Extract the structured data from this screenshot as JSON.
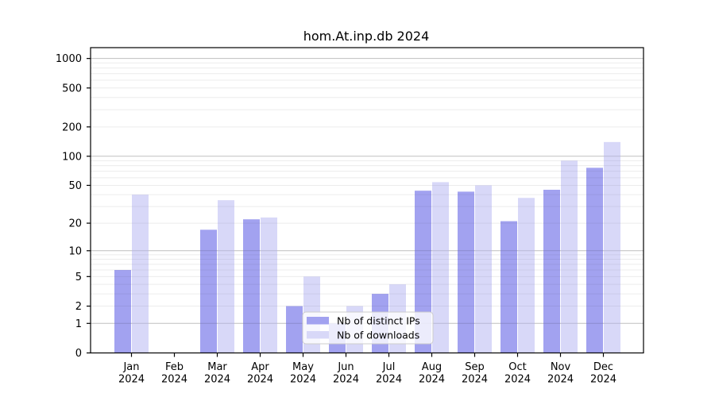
{
  "chart_data": {
    "type": "bar",
    "title": "hom.At.inp.db 2024",
    "categories": [
      "Jan",
      "Feb",
      "Mar",
      "Apr",
      "May",
      "Jun",
      "Jul",
      "Aug",
      "Sep",
      "Oct",
      "Nov",
      "Dec"
    ],
    "x_tick_second_line": "2024",
    "series": [
      {
        "name": "Nb of distinct IPs",
        "color": "#a2a2f0",
        "values": [
          6,
          0,
          17,
          22,
          2,
          1,
          3,
          44,
          43,
          21,
          45,
          76
        ]
      },
      {
        "name": "Nb of downloads",
        "color": "#d8d8f8",
        "values": [
          40,
          0,
          35,
          23,
          5,
          2,
          4,
          54,
          50,
          37,
          90,
          140
        ]
      }
    ],
    "y_ticks": [
      0,
      1,
      2,
      5,
      10,
      20,
      50,
      100,
      200,
      500,
      1000
    ],
    "y_scale": "log1p",
    "ylim": [
      0,
      1265
    ],
    "xlabel": "",
    "ylabel": "",
    "grid": true,
    "grid_minor_color": "#ececec",
    "grid_major_color": "#bfbfbf",
    "legend_position": "lower center"
  }
}
